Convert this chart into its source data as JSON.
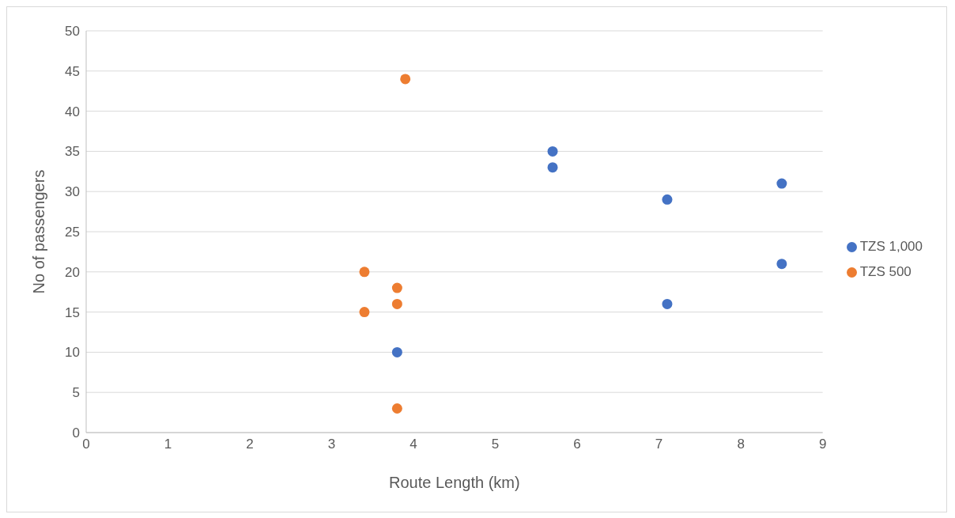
{
  "chart_data": {
    "type": "scatter",
    "xlabel": "Route Length (km)",
    "ylabel": "No of passengers",
    "xlim": [
      0,
      9
    ],
    "xticks": [
      0,
      1,
      2,
      3,
      4,
      5,
      6,
      7,
      8,
      9
    ],
    "ylim": [
      0,
      50
    ],
    "yticks": [
      0,
      5,
      10,
      15,
      20,
      25,
      30,
      35,
      40,
      45,
      50
    ],
    "grid": "y",
    "legend": "right",
    "marker": "circle",
    "series": [
      {
        "name": "TZS 1,000",
        "color": "#4472c4",
        "x": [
          5.7,
          5.7,
          7.1,
          8.5,
          8.5,
          7.1,
          3.8
        ],
        "values": [
          35,
          33,
          29,
          31,
          21,
          16,
          10
        ]
      },
      {
        "name": "TZS 500",
        "color": "#ed7d31",
        "x": [
          3.9,
          3.4,
          3.8,
          3.8,
          3.4,
          3.8
        ],
        "values": [
          44,
          20,
          18,
          16,
          15,
          3
        ]
      }
    ]
  }
}
